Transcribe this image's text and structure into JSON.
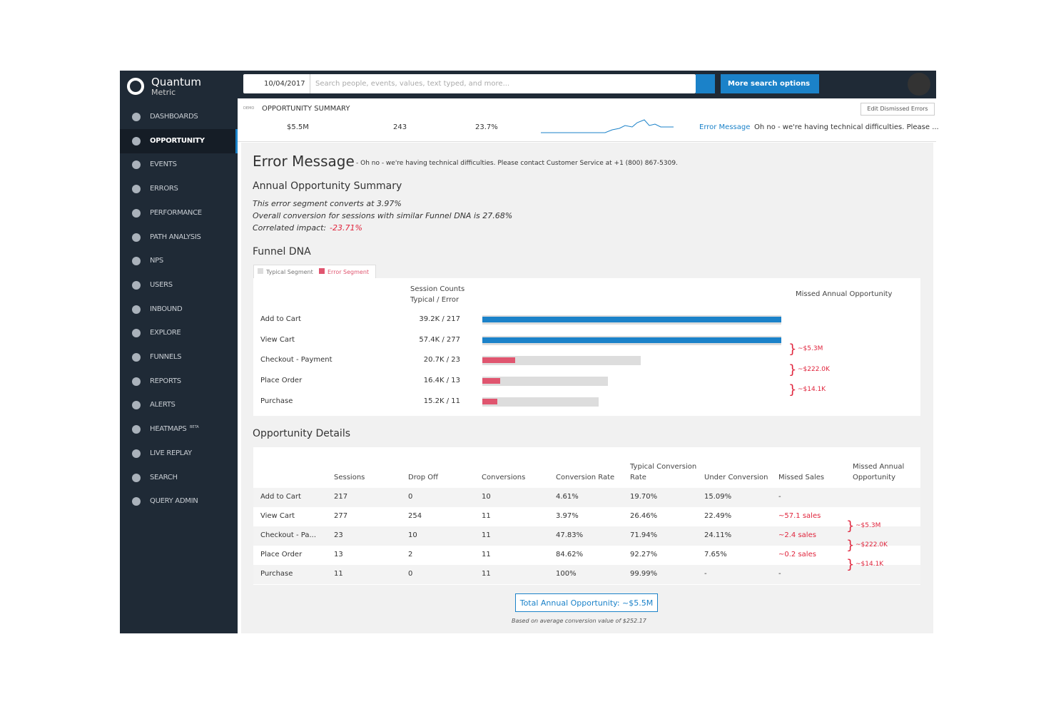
{
  "brand": {
    "name": "Quantum",
    "sub": "Metric"
  },
  "nav": [
    "DASHBOARDS",
    "OPPORTUNITY",
    "EVENTS",
    "ERRORS",
    "PERFORMANCE",
    "PATH ANALYSIS",
    "NPS",
    "USERS",
    "INBOUND",
    "EXPLORE",
    "FUNNELS",
    "REPORTS",
    "ALERTS",
    "HEATMAPS",
    "LIVE REPLAY",
    "SEARCH",
    "QUERY ADMIN"
  ],
  "nav_badge": "BETA",
  "search": {
    "date": "10/04/2017",
    "placeholder": "Search people, events, values, text typed, and more...",
    "more": "More search options"
  },
  "summary": {
    "tag": "DEMO",
    "title": "OPPORTUNITY SUMMARY",
    "edit": "Edit Dismissed Errors",
    "stats": [
      "$5.5M",
      "243",
      "23.7%"
    ],
    "link": "Error Message",
    "message": "Oh no - we're having technical difficulties. Please ..."
  },
  "detail": {
    "title": "Error Message",
    "subtitle": "- Oh no - we're having technical difficulties. Please contact Customer Service at +1 (800) 867-5309.",
    "annual_title": "Annual Opportunity Summary",
    "lines": [
      "This error segment converts at 3.97%",
      "Overall conversion for sessions with similar Funnel DNA is 27.68%"
    ],
    "impact_label": "Correlated impact:",
    "impact_value": "-23.71%"
  },
  "funnel": {
    "title": "Funnel DNA",
    "legend": [
      "Typical Segment",
      "Error Segment"
    ],
    "legend_colors": [
      "#dddddd",
      "#e0556f"
    ],
    "head_counts": [
      "Session Counts",
      "Typical / Error"
    ],
    "head_missed": "Missed Annual Opportunity",
    "rows": [
      {
        "step": "Add to Cart",
        "counts": "39.2K / 217",
        "typical": 100,
        "error": 100,
        "error_color": "#1b82c9"
      },
      {
        "step": "View Cart",
        "counts": "57.4K / 277",
        "typical": 100,
        "error": 100,
        "error_color": "#1b82c9"
      },
      {
        "step": "Checkout - Payment",
        "counts": "20.7K / 23",
        "typical": 53,
        "error": 11,
        "error_color": "#e0556f"
      },
      {
        "step": "Place Order",
        "counts": "16.4K / 13",
        "typical": 42,
        "error": 6,
        "error_color": "#e0556f"
      },
      {
        "step": "Purchase",
        "counts": "15.2K / 11",
        "typical": 39,
        "error": 5,
        "error_color": "#e0556f"
      }
    ],
    "missed": [
      "~$5.3M",
      "~$222.0K",
      "~$14.1K"
    ]
  },
  "details": {
    "title": "Opportunity Details",
    "columns": [
      "",
      "Sessions",
      "Drop Off",
      "Conversions",
      "Conversion Rate",
      "Typical Conversion Rate",
      "Under Conversion",
      "Missed Sales",
      "Missed Annual Opportunity"
    ],
    "rows": [
      [
        "Add to Cart",
        "217",
        "0",
        "10",
        "4.61%",
        "19.70%",
        "15.09%",
        "-"
      ],
      [
        "View Cart",
        "277",
        "254",
        "11",
        "3.97%",
        "26.46%",
        "22.49%",
        "~57.1 sales"
      ],
      [
        "Checkout - Pa...",
        "23",
        "10",
        "11",
        "47.83%",
        "71.94%",
        "24.11%",
        "~2.4 sales"
      ],
      [
        "Place Order",
        "13",
        "2",
        "11",
        "84.62%",
        "92.27%",
        "7.65%",
        "~0.2 sales"
      ],
      [
        "Purchase",
        "11",
        "0",
        "11",
        "100%",
        "99.99%",
        "-",
        "-"
      ]
    ],
    "missed": [
      "~$5.3M",
      "~$222.0K",
      "~$14.1K"
    ],
    "total": "Total Annual Opportunity: ~$5.5M",
    "note": "Based on average conversion value of $252.17"
  }
}
